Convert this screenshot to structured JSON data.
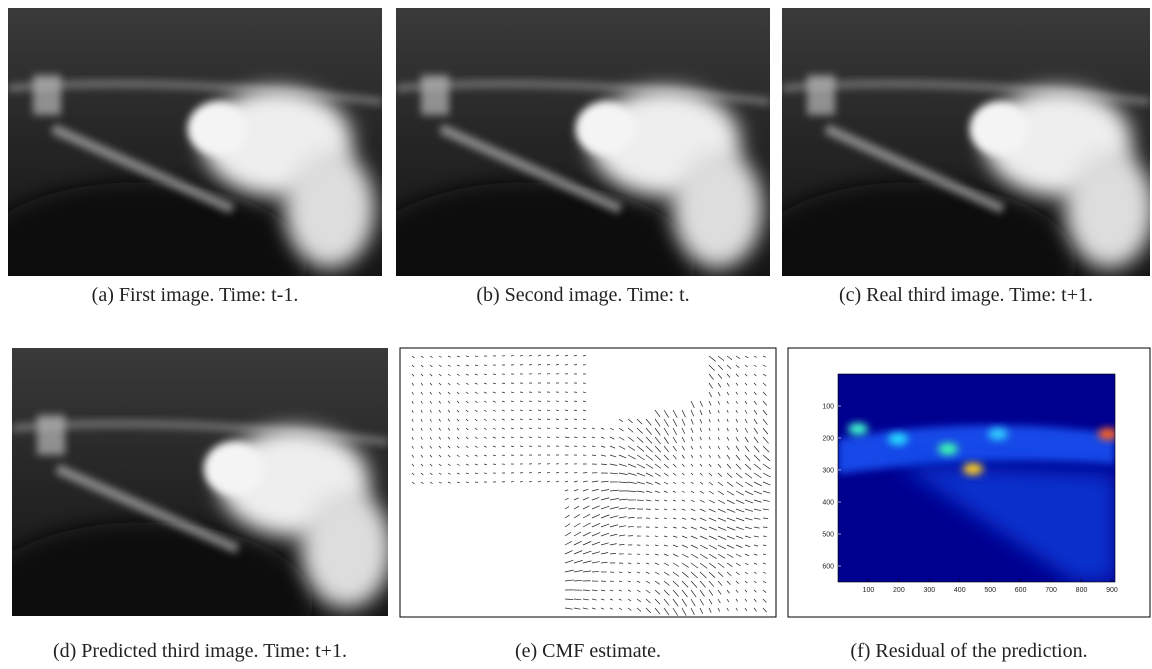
{
  "figure": {
    "panels": [
      {
        "caption": "(a) First image. Time: t-1."
      },
      {
        "caption": "(b) Second image. Time: t."
      },
      {
        "caption": "(c) Real third image. Time: t+1."
      },
      {
        "caption": "(d) Predicted third image. Time: t+1."
      },
      {
        "caption": "(e) CMF estimate."
      },
      {
        "caption": "(f) Residual of the prediction."
      }
    ],
    "residual_axes": {
      "xlim": [
        0,
        910
      ],
      "ylim": [
        0,
        650
      ],
      "xticks": [
        100,
        200,
        300,
        400,
        500,
        600,
        700,
        800,
        900
      ],
      "yticks": [
        100,
        200,
        300,
        400,
        500,
        600
      ]
    }
  }
}
